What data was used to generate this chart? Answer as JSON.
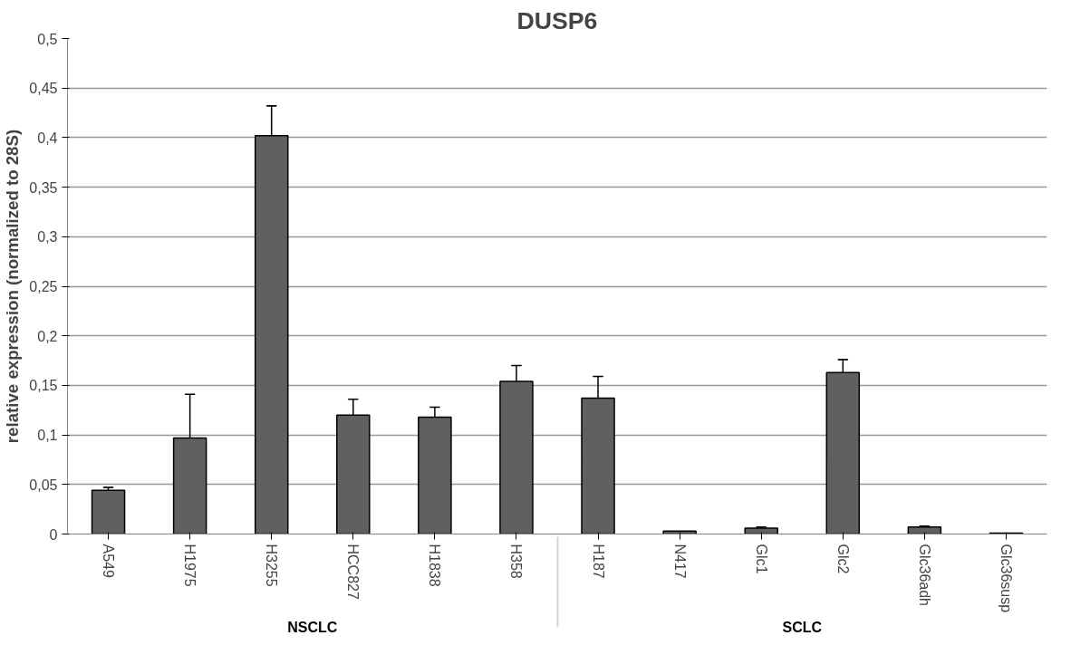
{
  "chart_data": {
    "type": "bar",
    "title": "DUSP6",
    "ylabel": "relative expression (normalized to 28S)",
    "categories": [
      "A549",
      "H1975",
      "H3255",
      "HCC827",
      "H1838",
      "H358",
      "H187",
      "N417",
      "Glc1",
      "Glc2",
      "Glc36adh",
      "Glc36susp"
    ],
    "values": [
      0.044,
      0.097,
      0.402,
      0.12,
      0.118,
      0.154,
      0.137,
      0.003,
      0.006,
      0.163,
      0.007,
      0.001
    ],
    "errors": [
      [
        0.044,
        0.047
      ],
      [
        0.097,
        0.141
      ],
      [
        0.402,
        0.432
      ],
      [
        0.12,
        0.136
      ],
      [
        0.118,
        0.128
      ],
      [
        0.154,
        0.17
      ],
      [
        0.137,
        0.159
      ],
      null,
      [
        0.006,
        0.007
      ],
      [
        0.163,
        0.176
      ],
      [
        0.007,
        0.008
      ],
      null
    ],
    "color": "#606060",
    "annotations": [
      "NSCLC",
      "SCLC"
    ],
    "ylim": [
      0,
      0.5
    ],
    "yticks": [
      0,
      {
        "value": 0.05,
        "label": "0,05"
      },
      {
        "value": 0.1,
        "label": "0,1"
      },
      {
        "value": 0.15,
        "label": "0,15"
      },
      {
        "value": 0.2,
        "label": "0,2"
      },
      {
        "value": 0.25,
        "label": "0,25"
      },
      {
        "value": 0.3,
        "label": "0,3"
      },
      {
        "value": 0.35,
        "label": "0,35"
      },
      {
        "value": 0.4,
        "label": "0,4"
      },
      {
        "value": 0.45,
        "label": "0,45"
      },
      {
        "value": 0.5,
        "label": "0,5"
      }
    ],
    "grid": "y"
  }
}
